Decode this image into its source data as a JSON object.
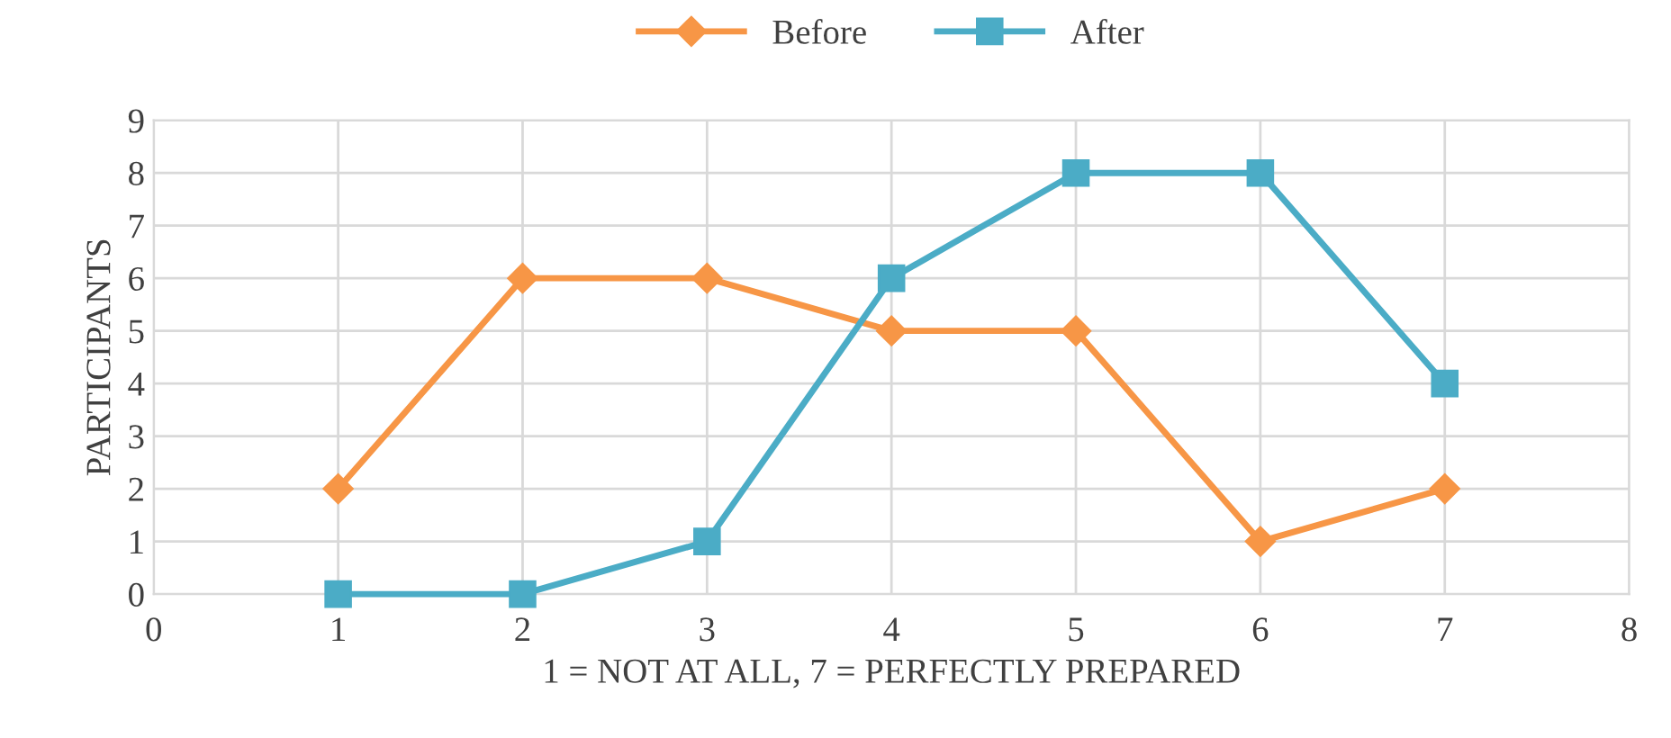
{
  "chart_data": {
    "type": "line",
    "xlabel": "1 = NOT AT ALL, 7 = PERFECTLY PREPARED",
    "ylabel": "PARTICIPANTS",
    "series": [
      {
        "name": "Before",
        "color": "#f79646",
        "marker": "diamond",
        "x": [
          1,
          2,
          3,
          4,
          5,
          6,
          7
        ],
        "values": [
          2,
          6,
          6,
          5,
          5,
          1,
          2
        ]
      },
      {
        "name": "After",
        "color": "#4bacc6",
        "marker": "square",
        "x": [
          1,
          2,
          3,
          4,
          5,
          6,
          7
        ],
        "values": [
          0,
          0,
          1,
          6,
          8,
          8,
          4
        ]
      }
    ],
    "xlim": [
      0,
      8
    ],
    "xticks": [
      0,
      1,
      2,
      3,
      4,
      5,
      6,
      7,
      8
    ],
    "ylim": [
      0,
      9
    ],
    "yticks": [
      0,
      1,
      2,
      3,
      4,
      5,
      6,
      7,
      8,
      9
    ],
    "grid": true,
    "legend": "top",
    "line_style": "solid"
  }
}
